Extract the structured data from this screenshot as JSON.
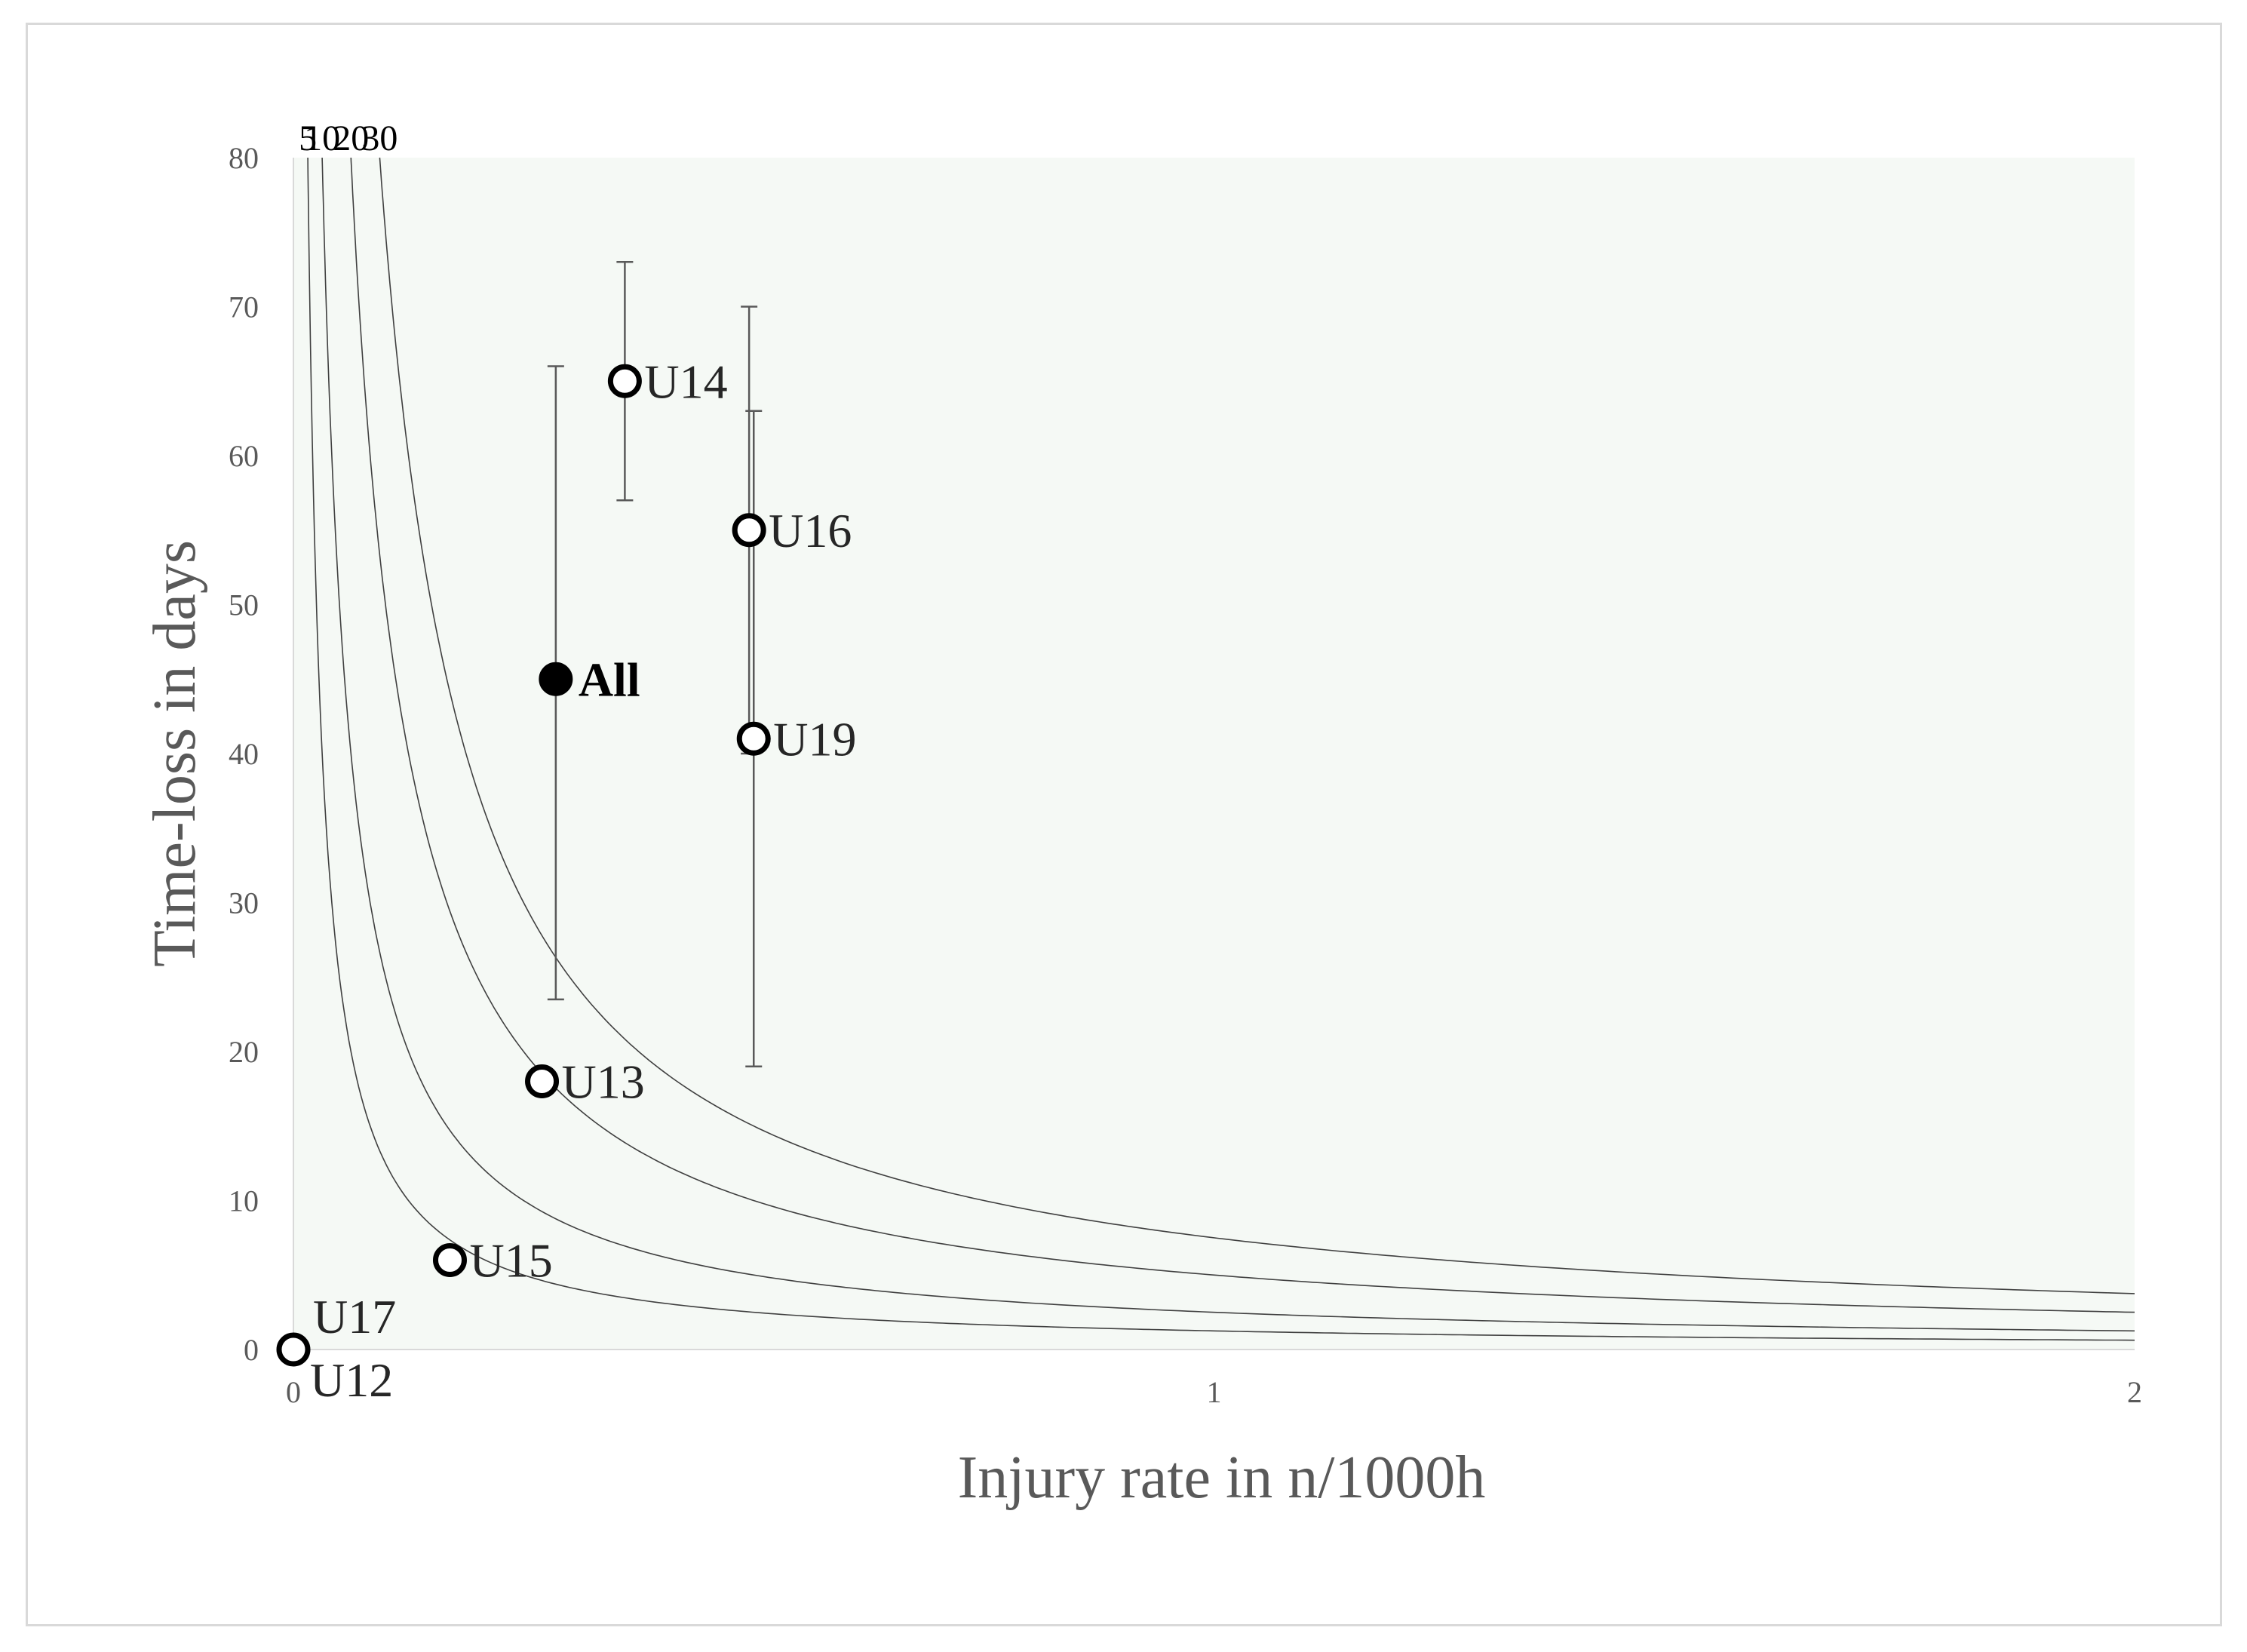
{
  "chart_data": {
    "type": "scatter",
    "xlabel": "Injury rate in n/1000h",
    "ylabel": "Time-loss in days",
    "xlim": [
      0,
      2
    ],
    "ylim": [
      0,
      80
    ],
    "x_ticks": [
      0,
      1,
      2
    ],
    "y_ticks": [
      0,
      10,
      20,
      30,
      40,
      50,
      60,
      70,
      80
    ],
    "grid": false,
    "plot_background": "#f5f9f5",
    "isolines": [
      {
        "label": "5",
        "value": 5
      },
      {
        "label": "10",
        "value": 10
      },
      {
        "label": "20",
        "value": 20
      },
      {
        "label": "30",
        "value": 30
      }
    ],
    "points": [
      {
        "label": "U12",
        "x": 0.0,
        "y": 0,
        "filled": false
      },
      {
        "label": "U17",
        "x": 0.0,
        "y": 0,
        "filled": false
      },
      {
        "label": "U15",
        "x": 0.17,
        "y": 6,
        "filled": false
      },
      {
        "label": "U13",
        "x": 0.27,
        "y": 18,
        "filled": false
      },
      {
        "label": "All",
        "x": 0.285,
        "y": 45,
        "filled": true,
        "ymin": 23.5,
        "ymax": 66
      },
      {
        "label": "U14",
        "x": 0.36,
        "y": 65,
        "filled": false,
        "ymin": 57,
        "ymax": 73
      },
      {
        "label": "U16",
        "x": 0.495,
        "y": 55,
        "filled": false,
        "ymin": 40,
        "ymax": 70
      },
      {
        "label": "U19",
        "x": 0.5,
        "y": 41,
        "filled": false,
        "ymin": 19,
        "ymax": 63
      }
    ]
  }
}
